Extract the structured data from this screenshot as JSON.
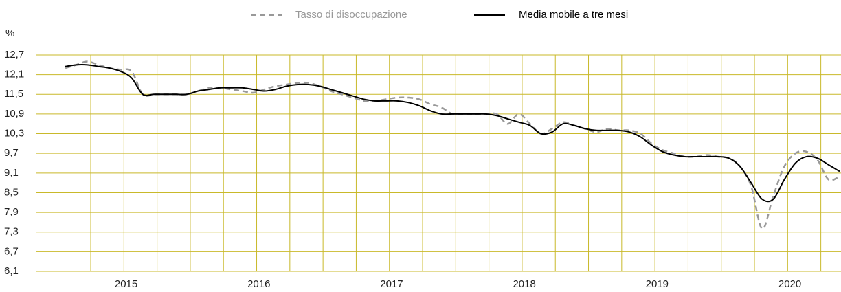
{
  "chart_data": {
    "type": "line",
    "y_label": "%",
    "categories": [
      null,
      null,
      null,
      null,
      null,
      "2015",
      null,
      null,
      null,
      null,
      null,
      null,
      null,
      null,
      null,
      null,
      null,
      "2016",
      null,
      null,
      null,
      null,
      null,
      null,
      null,
      null,
      null,
      null,
      null,
      "2017",
      null,
      null,
      null,
      null,
      null,
      null,
      null,
      null,
      null,
      null,
      null,
      "2018",
      null,
      null,
      null,
      null,
      null,
      null,
      null,
      null,
      null,
      null,
      null,
      "2019",
      null,
      null,
      null,
      null,
      null,
      null,
      null,
      null,
      null,
      null,
      null,
      "2020",
      null,
      null,
      null,
      null,
      null
    ],
    "series": [
      {
        "name": "Tasso di disoccupazione",
        "color": "#999999",
        "dashed": true,
        "values": [
          12.3,
          12.4,
          12.5,
          12.4,
          12.3,
          12.25,
          12.2,
          11.5,
          11.5,
          11.5,
          11.5,
          11.5,
          11.6,
          11.7,
          11.7,
          11.65,
          11.6,
          11.55,
          11.65,
          11.75,
          11.8,
          11.85,
          11.85,
          11.75,
          11.6,
          11.5,
          11.4,
          11.3,
          11.3,
          11.35,
          11.4,
          11.4,
          11.35,
          11.2,
          11.1,
          10.9,
          10.9,
          10.9,
          10.9,
          10.9,
          10.6,
          10.9,
          10.6,
          10.3,
          10.45,
          10.65,
          10.55,
          10.45,
          10.35,
          10.45,
          10.4,
          10.4,
          10.3,
          10.0,
          9.8,
          9.7,
          9.6,
          9.6,
          9.65,
          9.6,
          9.55,
          9.3,
          8.7,
          7.4,
          8.4,
          9.3,
          9.7,
          9.75,
          9.5,
          8.9,
          9.0
        ]
      },
      {
        "name": "Media mobile a tre mesi",
        "color": "#000000",
        "dashed": false,
        "values": [
          12.35,
          12.4,
          12.4,
          12.35,
          12.3,
          12.2,
          12.0,
          11.5,
          11.5,
          11.5,
          11.5,
          11.5,
          11.6,
          11.65,
          11.7,
          11.7,
          11.7,
          11.65,
          11.6,
          11.65,
          11.75,
          11.8,
          11.8,
          11.75,
          11.65,
          11.55,
          11.45,
          11.35,
          11.3,
          11.3,
          11.3,
          11.25,
          11.15,
          11.0,
          10.9,
          10.9,
          10.9,
          10.9,
          10.9,
          10.85,
          10.75,
          10.65,
          10.55,
          10.3,
          10.35,
          10.6,
          10.55,
          10.45,
          10.4,
          10.4,
          10.4,
          10.35,
          10.2,
          9.95,
          9.75,
          9.65,
          9.6,
          9.6,
          9.6,
          9.6,
          9.55,
          9.3,
          8.8,
          8.3,
          8.3,
          8.9,
          9.4,
          9.6,
          9.55,
          9.35,
          9.15
        ]
      }
    ],
    "ylim": [
      6.1,
      12.7
    ],
    "yticks": [
      {
        "value": 6.1,
        "label": "6,1"
      },
      {
        "value": 6.7,
        "label": "6,7"
      },
      {
        "value": 7.3,
        "label": "7,3"
      },
      {
        "value": 7.9,
        "label": "7,9"
      },
      {
        "value": 8.5,
        "label": "8,5"
      },
      {
        "value": 9.1,
        "label": "9,1"
      },
      {
        "value": 9.7,
        "label": "9,7"
      },
      {
        "value": 10.3,
        "label": "10,3"
      },
      {
        "value": 10.9,
        "label": "10,9"
      },
      {
        "value": 11.5,
        "label": "11,5"
      },
      {
        "value": 12.1,
        "label": "12,1"
      },
      {
        "value": 12.7,
        "label": "12,7"
      }
    ],
    "grid": true,
    "grid_color": "#c9b92a",
    "legend": "top"
  }
}
